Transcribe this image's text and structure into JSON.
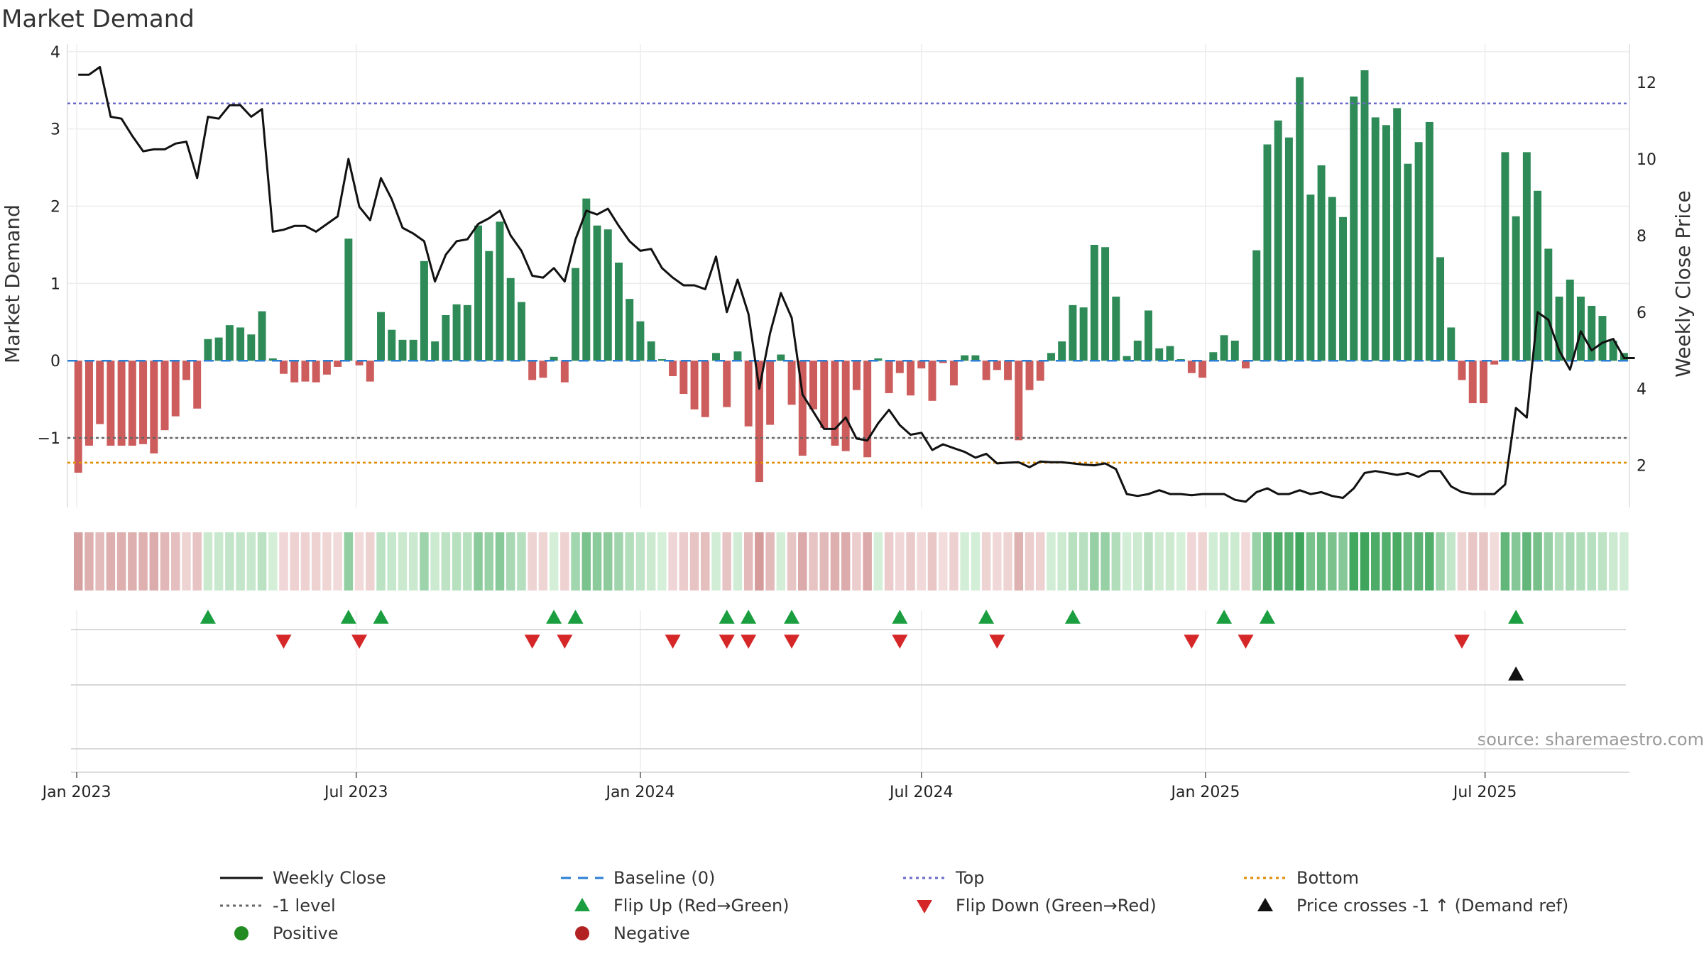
{
  "chart_data": {
    "type": "bar",
    "title": "Market Demand",
    "ylabel": "Market Demand",
    "y2label": "Weekly Close Price",
    "source": "source: sharemaestro.com",
    "ylim": [
      -1.9,
      4.1
    ],
    "y2lim": [
      0.9,
      13.0
    ],
    "yticks": [
      "−1",
      "0",
      "1",
      "2",
      "3",
      "4"
    ],
    "y2ticks": [
      "2",
      "4",
      "6",
      "8",
      "10",
      "12"
    ],
    "x_start": "2023-01-02",
    "x_end": "2025-09-29",
    "xticks": [
      {
        "date": "2023-01-01",
        "label": "Jan 2023"
      },
      {
        "date": "2023-07-01",
        "label": "Jul 2023"
      },
      {
        "date": "2024-01-01",
        "label": "Jan 2024"
      },
      {
        "date": "2024-07-01",
        "label": "Jul 2024"
      },
      {
        "date": "2025-01-01",
        "label": "Jan 2025"
      },
      {
        "date": "2025-07-01",
        "label": "Jul 2025"
      }
    ],
    "reference_lines": {
      "top": 3.33,
      "minus_one": -1.0,
      "bottom": -1.32,
      "baseline": 0
    },
    "colors": {
      "positive": "#2e8b57",
      "negative": "#cd5c5c",
      "close": "#111111",
      "top": "#6a6ac8",
      "minus_one": "#666666",
      "bottom": "#e08a00",
      "baseline": "#2a7fd4",
      "flip_up": "#1a9e3f",
      "flip_down": "#d62728",
      "cross": "#111111",
      "positive_dot": "#228b22",
      "negative_dot": "#b22222"
    },
    "demand": [
      -1.45,
      -1.1,
      -0.82,
      -1.1,
      -1.1,
      -1.1,
      -1.08,
      -1.2,
      -0.9,
      -0.72,
      -0.25,
      -0.62,
      0.28,
      0.3,
      0.46,
      0.43,
      0.34,
      0.64,
      0.03,
      -0.17,
      -0.28,
      -0.27,
      -0.28,
      -0.18,
      -0.08,
      1.58,
      -0.06,
      -0.27,
      0.63,
      0.4,
      0.27,
      0.27,
      1.29,
      0.25,
      0.59,
      0.73,
      0.72,
      1.75,
      1.42,
      1.8,
      1.07,
      0.76,
      -0.25,
      -0.22,
      0.05,
      -0.28,
      1.2,
      2.1,
      1.75,
      1.7,
      1.27,
      0.8,
      0.51,
      0.25,
      0.02,
      -0.2,
      -0.43,
      -0.63,
      -0.73,
      0.1,
      -0.6,
      0.12,
      -0.85,
      -1.57,
      -0.83,
      0.08,
      -0.57,
      -1.23,
      -0.63,
      -0.87,
      -1.1,
      -1.17,
      -0.38,
      -1.25,
      0.03,
      -0.42,
      -0.16,
      -0.45,
      -0.1,
      -0.52,
      -0.03,
      -0.32,
      0.07,
      0.07,
      -0.25,
      -0.12,
      -0.25,
      -1.03,
      -0.38,
      -0.26,
      0.1,
      0.25,
      0.72,
      0.69,
      1.5,
      1.47,
      0.83,
      0.06,
      0.26,
      0.65,
      0.16,
      0.19,
      0.02,
      -0.16,
      -0.22,
      0.11,
      0.33,
      0.26,
      -0.1,
      1.43,
      2.8,
      3.11,
      2.89,
      3.67,
      2.15,
      2.53,
      2.12,
      1.86,
      3.42,
      3.76,
      3.15,
      3.05,
      3.27,
      2.55,
      2.83,
      3.09,
      1.34,
      0.43,
      -0.25,
      -0.55,
      -0.55,
      -0.05,
      2.7,
      1.87,
      2.7,
      2.2,
      1.45,
      0.83,
      1.05,
      0.83,
      0.71,
      0.58,
      0.26,
      0.1
    ],
    "close": [
      12.2,
      12.2,
      12.4,
      11.1,
      11.05,
      10.6,
      10.2,
      10.25,
      10.25,
      10.4,
      10.45,
      9.5,
      11.1,
      11.05,
      11.4,
      11.4,
      11.1,
      11.3,
      8.1,
      8.15,
      8.25,
      8.25,
      8.1,
      8.3,
      8.5,
      10.0,
      8.75,
      8.4,
      9.5,
      8.95,
      8.2,
      8.05,
      7.85,
      6.8,
      7.5,
      7.85,
      7.9,
      8.3,
      8.45,
      8.65,
      8.0,
      7.6,
      6.95,
      6.9,
      7.15,
      6.8,
      7.9,
      8.65,
      8.55,
      8.7,
      8.25,
      7.85,
      7.6,
      7.65,
      7.15,
      6.9,
      6.7,
      6.7,
      6.6,
      7.45,
      6.0,
      6.85,
      5.95,
      4.0,
      5.45,
      6.5,
      5.85,
      3.85,
      3.4,
      2.95,
      2.95,
      3.25,
      2.7,
      2.65,
      3.1,
      3.45,
      3.05,
      2.8,
      2.85,
      2.4,
      2.55,
      2.45,
      2.35,
      2.2,
      2.3,
      2.05,
      2.07,
      2.08,
      1.95,
      2.1,
      2.08,
      2.08,
      2.05,
      2.02,
      2.0,
      2.05,
      1.9,
      1.25,
      1.2,
      1.25,
      1.35,
      1.25,
      1.25,
      1.22,
      1.25,
      1.25,
      1.25,
      1.1,
      1.05,
      1.3,
      1.4,
      1.25,
      1.25,
      1.35,
      1.25,
      1.3,
      1.2,
      1.15,
      1.4,
      1.8,
      1.85,
      1.8,
      1.75,
      1.8,
      1.7,
      1.85,
      1.85,
      1.45,
      1.3,
      1.25,
      1.25,
      1.25,
      1.5,
      3.5,
      3.25,
      6.0,
      5.8,
      5.0,
      4.5,
      5.5,
      5.0,
      5.2,
      5.3,
      4.8,
      4.8
    ],
    "flip_up_weeks": [
      12,
      25,
      28,
      44,
      46,
      60,
      62,
      66,
      76,
      84,
      92,
      106,
      110,
      133
    ],
    "flip_down_weeks": [
      19,
      26,
      42,
      45,
      55,
      60,
      62,
      66,
      76,
      85,
      103,
      108,
      128
    ],
    "cross_up_weeks": [
      133
    ],
    "legend": [
      {
        "label": "Weekly Close",
        "marker": "line-solid",
        "color": "#111111"
      },
      {
        "label": "Baseline (0)",
        "marker": "line-dash",
        "color": "#2a7fd4"
      },
      {
        "label": "Top",
        "marker": "line-dot",
        "color": "#6a6ac8"
      },
      {
        "label": "Bottom",
        "marker": "line-dot",
        "color": "#e08a00"
      },
      {
        "label": "-1 level",
        "marker": "line-dot",
        "color": "#666666"
      },
      {
        "label": "Flip Up (Red→Green)",
        "marker": "triangle-up",
        "color": "#1a9e3f"
      },
      {
        "label": "Flip Down (Green→Red)",
        "marker": "triangle-down",
        "color": "#d62728"
      },
      {
        "label": "Price crosses -1 ↑ (Demand ref)",
        "marker": "triangle-up",
        "color": "#111111"
      },
      {
        "label": "Positive",
        "marker": "dot",
        "color": "#228b22"
      },
      {
        "label": "Negative",
        "marker": "dot",
        "color": "#b22222"
      }
    ]
  }
}
